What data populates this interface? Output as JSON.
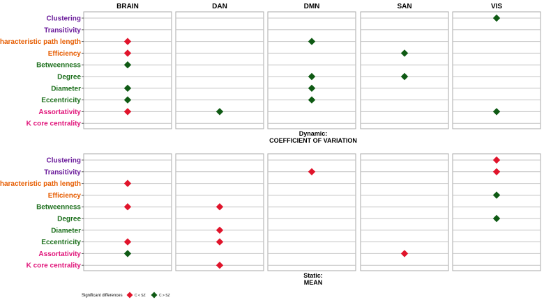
{
  "chart_data": {
    "type": "scatter",
    "columns": [
      "BRAIN",
      "DAN",
      "DMN",
      "SAN",
      "VIS"
    ],
    "rows": [
      {
        "label": "Clustering",
        "color": "#6a1b9a"
      },
      {
        "label": "Transitivity",
        "color": "#6a1b9a"
      },
      {
        "label": "Characteristic path length",
        "color": "#e65c00"
      },
      {
        "label": "Efficiency",
        "color": "#e65c00"
      },
      {
        "label": "Betweenness",
        "color": "#1b6e1b"
      },
      {
        "label": "Degree",
        "color": "#1b6e1b"
      },
      {
        "label": "Diameter",
        "color": "#1b6e1b"
      },
      {
        "label": "Eccentricity",
        "color": "#1b6e1b"
      },
      {
        "label": "Assortativity",
        "color": "#e0157a"
      },
      {
        "label": "K core centrality",
        "color": "#e0157a"
      }
    ],
    "panels": [
      {
        "title_line1": "Dynamic:",
        "title_line2": "COEFFICIENT OF VARIATION",
        "points": [
          {
            "row": "Characteristic path length",
            "col": "BRAIN",
            "group": "C < SZ"
          },
          {
            "row": "Efficiency",
            "col": "BRAIN",
            "group": "C < SZ"
          },
          {
            "row": "Betweenness",
            "col": "BRAIN",
            "group": "C > SZ"
          },
          {
            "row": "Diameter",
            "col": "BRAIN",
            "group": "C > SZ"
          },
          {
            "row": "Eccentricity",
            "col": "BRAIN",
            "group": "C > SZ"
          },
          {
            "row": "Assortativity",
            "col": "BRAIN",
            "group": "C < SZ"
          },
          {
            "row": "Assortativity",
            "col": "DAN",
            "group": "C > SZ"
          },
          {
            "row": "Characteristic path length",
            "col": "DMN",
            "group": "C > SZ"
          },
          {
            "row": "Degree",
            "col": "DMN",
            "group": "C > SZ"
          },
          {
            "row": "Diameter",
            "col": "DMN",
            "group": "C > SZ"
          },
          {
            "row": "Eccentricity",
            "col": "DMN",
            "group": "C > SZ"
          },
          {
            "row": "Efficiency",
            "col": "SAN",
            "group": "C > SZ"
          },
          {
            "row": "Degree",
            "col": "SAN",
            "group": "C > SZ"
          },
          {
            "row": "Clustering",
            "col": "VIS",
            "group": "C > SZ"
          },
          {
            "row": "Assortativity",
            "col": "VIS",
            "group": "C > SZ"
          }
        ]
      },
      {
        "title_line1": "Static:",
        "title_line2": "MEAN",
        "points": [
          {
            "row": "Characteristic path length",
            "col": "BRAIN",
            "group": "C < SZ"
          },
          {
            "row": "Betweenness",
            "col": "BRAIN",
            "group": "C < SZ"
          },
          {
            "row": "Eccentricity",
            "col": "BRAIN",
            "group": "C < SZ"
          },
          {
            "row": "Assortativity",
            "col": "BRAIN",
            "group": "C > SZ"
          },
          {
            "row": "Betweenness",
            "col": "DAN",
            "group": "C < SZ"
          },
          {
            "row": "Diameter",
            "col": "DAN",
            "group": "C < SZ"
          },
          {
            "row": "Eccentricity",
            "col": "DAN",
            "group": "C < SZ"
          },
          {
            "row": "K core centrality",
            "col": "DAN",
            "group": "C < SZ"
          },
          {
            "row": "Transitivity",
            "col": "DMN",
            "group": "C < SZ"
          },
          {
            "row": "Assortativity",
            "col": "SAN",
            "group": "C < SZ"
          },
          {
            "row": "Clustering",
            "col": "VIS",
            "group": "C < SZ"
          },
          {
            "row": "Transitivity",
            "col": "VIS",
            "group": "C < SZ"
          },
          {
            "row": "Efficiency",
            "col": "VIS",
            "group": "C > SZ"
          },
          {
            "row": "Degree",
            "col": "VIS",
            "group": "C > SZ"
          }
        ]
      }
    ],
    "legend": {
      "title": "Significant differences",
      "items": [
        {
          "label": "C < SZ",
          "color": "#e0142b"
        },
        {
          "label": "C > SZ",
          "color": "#0f5a14"
        }
      ]
    },
    "grid": true
  }
}
